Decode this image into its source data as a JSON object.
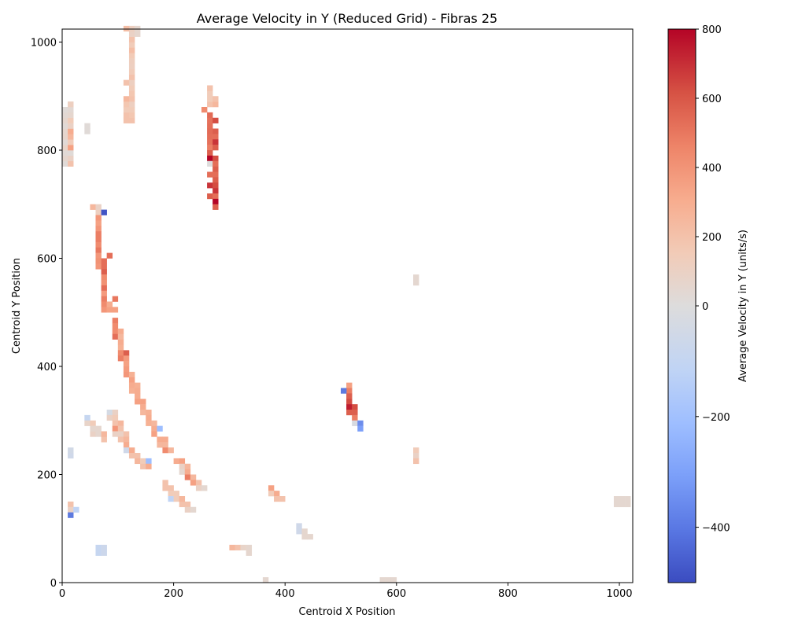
{
  "chart_data": {
    "type": "heatmap",
    "title": "Average Velocity in Y (Reduced Grid) - Fibras 25",
    "xlabel": "Centroid X Position",
    "ylabel": "Centroid Y Position",
    "xlim": [
      0,
      1024
    ],
    "ylim": [
      0,
      1024
    ],
    "xticks": [
      "0",
      "200",
      "400",
      "600",
      "800",
      "1000"
    ],
    "yticks": [
      "0",
      "200",
      "400",
      "600",
      "800",
      "1000"
    ],
    "grid": false,
    "cell_size": 10,
    "colorbar": {
      "label": "Average Velocity in Y (units/s)",
      "colormap": "coolwarm",
      "vmin": -500,
      "vcenter": 0,
      "vmax": 800,
      "ticks": [
        "−400",
        "−200",
        "0",
        "200",
        "400",
        "600",
        "800"
      ]
    },
    "cells": [
      [
        0,
        770,
        20
      ],
      [
        0,
        780,
        60
      ],
      [
        0,
        790,
        30
      ],
      [
        0,
        800,
        80
      ],
      [
        0,
        810,
        30
      ],
      [
        0,
        820,
        70
      ],
      [
        0,
        830,
        60
      ],
      [
        0,
        840,
        30
      ],
      [
        0,
        850,
        60
      ],
      [
        0,
        860,
        40
      ],
      [
        0,
        870,
        20
      ],
      [
        10,
        770,
        200
      ],
      [
        10,
        780,
        100
      ],
      [
        10,
        790,
        20
      ],
      [
        10,
        800,
        350
      ],
      [
        10,
        810,
        150
      ],
      [
        10,
        820,
        250
      ],
      [
        10,
        830,
        300
      ],
      [
        10,
        840,
        100
      ],
      [
        10,
        850,
        150
      ],
      [
        10,
        860,
        60
      ],
      [
        10,
        870,
        40
      ],
      [
        10,
        880,
        120
      ],
      [
        40,
        830,
        20
      ],
      [
        40,
        840,
        20
      ],
      [
        120,
        850,
        200
      ],
      [
        120,
        860,
        180
      ],
      [
        120,
        870,
        150
      ],
      [
        120,
        880,
        120
      ],
      [
        120,
        890,
        200
      ],
      [
        120,
        900,
        180
      ],
      [
        120,
        910,
        150
      ],
      [
        120,
        920,
        120
      ],
      [
        120,
        930,
        200
      ],
      [
        120,
        940,
        150
      ],
      [
        120,
        950,
        120
      ],
      [
        120,
        960,
        130
      ],
      [
        120,
        970,
        160
      ],
      [
        120,
        980,
        220
      ],
      [
        120,
        990,
        150
      ],
      [
        120,
        1000,
        200
      ],
      [
        120,
        1010,
        100
      ],
      [
        120,
        1020,
        120
      ],
      [
        110,
        850,
        200
      ],
      [
        110,
        860,
        200
      ],
      [
        110,
        870,
        150
      ],
      [
        110,
        880,
        180
      ],
      [
        110,
        890,
        250
      ],
      [
        110,
        920,
        200
      ],
      [
        110,
        1020,
        220
      ],
      [
        130,
        1010,
        60
      ],
      [
        130,
        1020,
        60
      ],
      [
        250,
        870,
        450
      ],
      [
        260,
        880,
        200
      ],
      [
        260,
        890,
        150
      ],
      [
        260,
        900,
        150
      ],
      [
        260,
        910,
        200
      ],
      [
        270,
        880,
        250
      ],
      [
        270,
        890,
        200
      ],
      [
        260,
        860,
        560
      ],
      [
        260,
        850,
        540
      ],
      [
        260,
        840,
        550
      ],
      [
        260,
        830,
        560
      ],
      [
        260,
        820,
        550
      ],
      [
        260,
        810,
        540
      ],
      [
        260,
        800,
        500
      ],
      [
        260,
        790,
        600
      ],
      [
        260,
        780,
        800
      ],
      [
        260,
        770,
        0
      ],
      [
        260,
        750,
        550
      ],
      [
        260,
        730,
        700
      ],
      [
        260,
        710,
        600
      ],
      [
        270,
        850,
        650
      ],
      [
        270,
        830,
        600
      ],
      [
        270,
        820,
        550
      ],
      [
        270,
        810,
        700
      ],
      [
        270,
        800,
        600
      ],
      [
        270,
        780,
        650
      ],
      [
        270,
        770,
        550
      ],
      [
        270,
        760,
        600
      ],
      [
        270,
        750,
        550
      ],
      [
        270,
        740,
        600
      ],
      [
        270,
        730,
        650
      ],
      [
        270,
        720,
        700
      ],
      [
        270,
        710,
        550
      ],
      [
        270,
        700,
        800
      ],
      [
        270,
        690,
        600
      ],
      [
        50,
        690,
        250
      ],
      [
        60,
        680,
        120
      ],
      [
        60,
        690,
        100
      ],
      [
        70,
        680,
        -480
      ],
      [
        60,
        670,
        400
      ],
      [
        60,
        660,
        350
      ],
      [
        60,
        650,
        400
      ],
      [
        60,
        640,
        500
      ],
      [
        60,
        630,
        500
      ],
      [
        60,
        620,
        450
      ],
      [
        60,
        610,
        520
      ],
      [
        60,
        600,
        400
      ],
      [
        60,
        590,
        420
      ],
      [
        60,
        580,
        400
      ],
      [
        70,
        590,
        550
      ],
      [
        70,
        580,
        550
      ],
      [
        70,
        570,
        600
      ],
      [
        70,
        560,
        450
      ],
      [
        70,
        550,
        420
      ],
      [
        70,
        540,
        550
      ],
      [
        70,
        530,
        380
      ],
      [
        70,
        520,
        500
      ],
      [
        70,
        510,
        450
      ],
      [
        70,
        500,
        400
      ],
      [
        80,
        600,
        550
      ],
      [
        80,
        500,
        350
      ],
      [
        80,
        510,
        300
      ],
      [
        90,
        520,
        520
      ],
      [
        90,
        500,
        350
      ],
      [
        90,
        480,
        500
      ],
      [
        90,
        470,
        450
      ],
      [
        90,
        460,
        450
      ],
      [
        90,
        450,
        550
      ],
      [
        100,
        460,
        300
      ],
      [
        100,
        450,
        250
      ],
      [
        100,
        440,
        300
      ],
      [
        100,
        430,
        280
      ],
      [
        100,
        420,
        450
      ],
      [
        100,
        410,
        500
      ],
      [
        110,
        420,
        600
      ],
      [
        110,
        410,
        380
      ],
      [
        110,
        400,
        350
      ],
      [
        110,
        390,
        380
      ],
      [
        110,
        380,
        400
      ],
      [
        120,
        380,
        280
      ],
      [
        120,
        370,
        350
      ],
      [
        120,
        360,
        300
      ],
      [
        120,
        350,
        280
      ],
      [
        130,
        360,
        280
      ],
      [
        130,
        350,
        300
      ],
      [
        130,
        340,
        300
      ],
      [
        130,
        330,
        350
      ],
      [
        140,
        330,
        350
      ],
      [
        140,
        320,
        300
      ],
      [
        140,
        310,
        250
      ],
      [
        150,
        310,
        280
      ],
      [
        150,
        300,
        300
      ],
      [
        150,
        290,
        280
      ],
      [
        160,
        290,
        250
      ],
      [
        160,
        280,
        300
      ],
      [
        160,
        270,
        350
      ],
      [
        170,
        280,
        -200
      ],
      [
        170,
        260,
        300
      ],
      [
        170,
        250,
        250
      ],
      [
        180,
        260,
        300
      ],
      [
        180,
        250,
        250
      ],
      [
        180,
        240,
        450
      ],
      [
        190,
        240,
        250
      ],
      [
        200,
        220,
        300
      ],
      [
        210,
        220,
        350
      ],
      [
        210,
        210,
        100
      ],
      [
        210,
        200,
        50
      ],
      [
        220,
        210,
        250
      ],
      [
        220,
        200,
        300
      ],
      [
        220,
        190,
        500
      ],
      [
        230,
        190,
        250
      ],
      [
        230,
        180,
        350
      ],
      [
        240,
        180,
        200
      ],
      [
        240,
        170,
        100
      ],
      [
        250,
        170,
        50
      ],
      [
        180,
        170,
        200
      ],
      [
        180,
        180,
        200
      ],
      [
        190,
        170,
        200
      ],
      [
        190,
        160,
        150
      ],
      [
        190,
        150,
        -100
      ],
      [
        200,
        160,
        150
      ],
      [
        200,
        150,
        150
      ],
      [
        210,
        140,
        200
      ],
      [
        210,
        150,
        250
      ],
      [
        220,
        140,
        200
      ],
      [
        220,
        130,
        100
      ],
      [
        230,
        130,
        50
      ],
      [
        40,
        300,
        -80
      ],
      [
        40,
        290,
        80
      ],
      [
        50,
        290,
        150
      ],
      [
        50,
        270,
        100
      ],
      [
        50,
        280,
        60
      ],
      [
        60,
        280,
        60
      ],
      [
        60,
        270,
        60
      ],
      [
        70,
        260,
        200
      ],
      [
        70,
        270,
        250
      ],
      [
        80,
        310,
        -30
      ],
      [
        80,
        300,
        100
      ],
      [
        90,
        310,
        100
      ],
      [
        90,
        300,
        150
      ],
      [
        90,
        290,
        200
      ],
      [
        90,
        280,
        400
      ],
      [
        90,
        270,
        100
      ],
      [
        100,
        290,
        250
      ],
      [
        100,
        280,
        200
      ],
      [
        100,
        270,
        100
      ],
      [
        100,
        260,
        200
      ],
      [
        110,
        270,
        200
      ],
      [
        110,
        260,
        250
      ],
      [
        110,
        250,
        300
      ],
      [
        110,
        240,
        -50
      ],
      [
        120,
        240,
        300
      ],
      [
        120,
        230,
        200
      ],
      [
        130,
        230,
        200
      ],
      [
        130,
        220,
        250
      ],
      [
        140,
        220,
        150
      ],
      [
        140,
        210,
        200
      ],
      [
        150,
        220,
        -200
      ],
      [
        150,
        210,
        300
      ],
      [
        10,
        230,
        -50
      ],
      [
        10,
        240,
        -40
      ],
      [
        10,
        140,
        200
      ],
      [
        10,
        130,
        100
      ],
      [
        10,
        120,
        -400
      ],
      [
        20,
        130,
        -100
      ],
      [
        60,
        60,
        -80
      ],
      [
        60,
        50,
        -80
      ],
      [
        70,
        60,
        -60
      ],
      [
        70,
        50,
        -60
      ],
      [
        300,
        60,
        250
      ],
      [
        310,
        60,
        200
      ],
      [
        320,
        60,
        80
      ],
      [
        330,
        60,
        60
      ],
      [
        330,
        50,
        60
      ],
      [
        360,
        0,
        50
      ],
      [
        370,
        170,
        350
      ],
      [
        370,
        160,
        150
      ],
      [
        380,
        160,
        300
      ],
      [
        380,
        150,
        200
      ],
      [
        390,
        150,
        200
      ],
      [
        420,
        100,
        -50
      ],
      [
        420,
        90,
        -50
      ],
      [
        430,
        90,
        60
      ],
      [
        430,
        80,
        60
      ],
      [
        440,
        80,
        60
      ],
      [
        570,
        0,
        50
      ],
      [
        580,
        0,
        50
      ],
      [
        590,
        0,
        50
      ],
      [
        630,
        560,
        50
      ],
      [
        630,
        550,
        50
      ],
      [
        630,
        240,
        150
      ],
      [
        630,
        230,
        100
      ],
      [
        630,
        220,
        200
      ],
      [
        990,
        140,
        50
      ],
      [
        1000,
        140,
        50
      ],
      [
        1010,
        140,
        50
      ],
      [
        990,
        150,
        50
      ],
      [
        1000,
        150,
        50
      ],
      [
        1010,
        150,
        50
      ],
      [
        510,
        360,
        350
      ],
      [
        510,
        350,
        500
      ],
      [
        510,
        340,
        600
      ],
      [
        510,
        330,
        650
      ],
      [
        510,
        320,
        750
      ],
      [
        510,
        310,
        600
      ],
      [
        500,
        350,
        -400
      ],
      [
        520,
        320,
        650
      ],
      [
        520,
        310,
        600
      ],
      [
        520,
        300,
        500
      ],
      [
        520,
        290,
        -20
      ],
      [
        530,
        290,
        -350
      ],
      [
        530,
        280,
        -300
      ]
    ]
  }
}
